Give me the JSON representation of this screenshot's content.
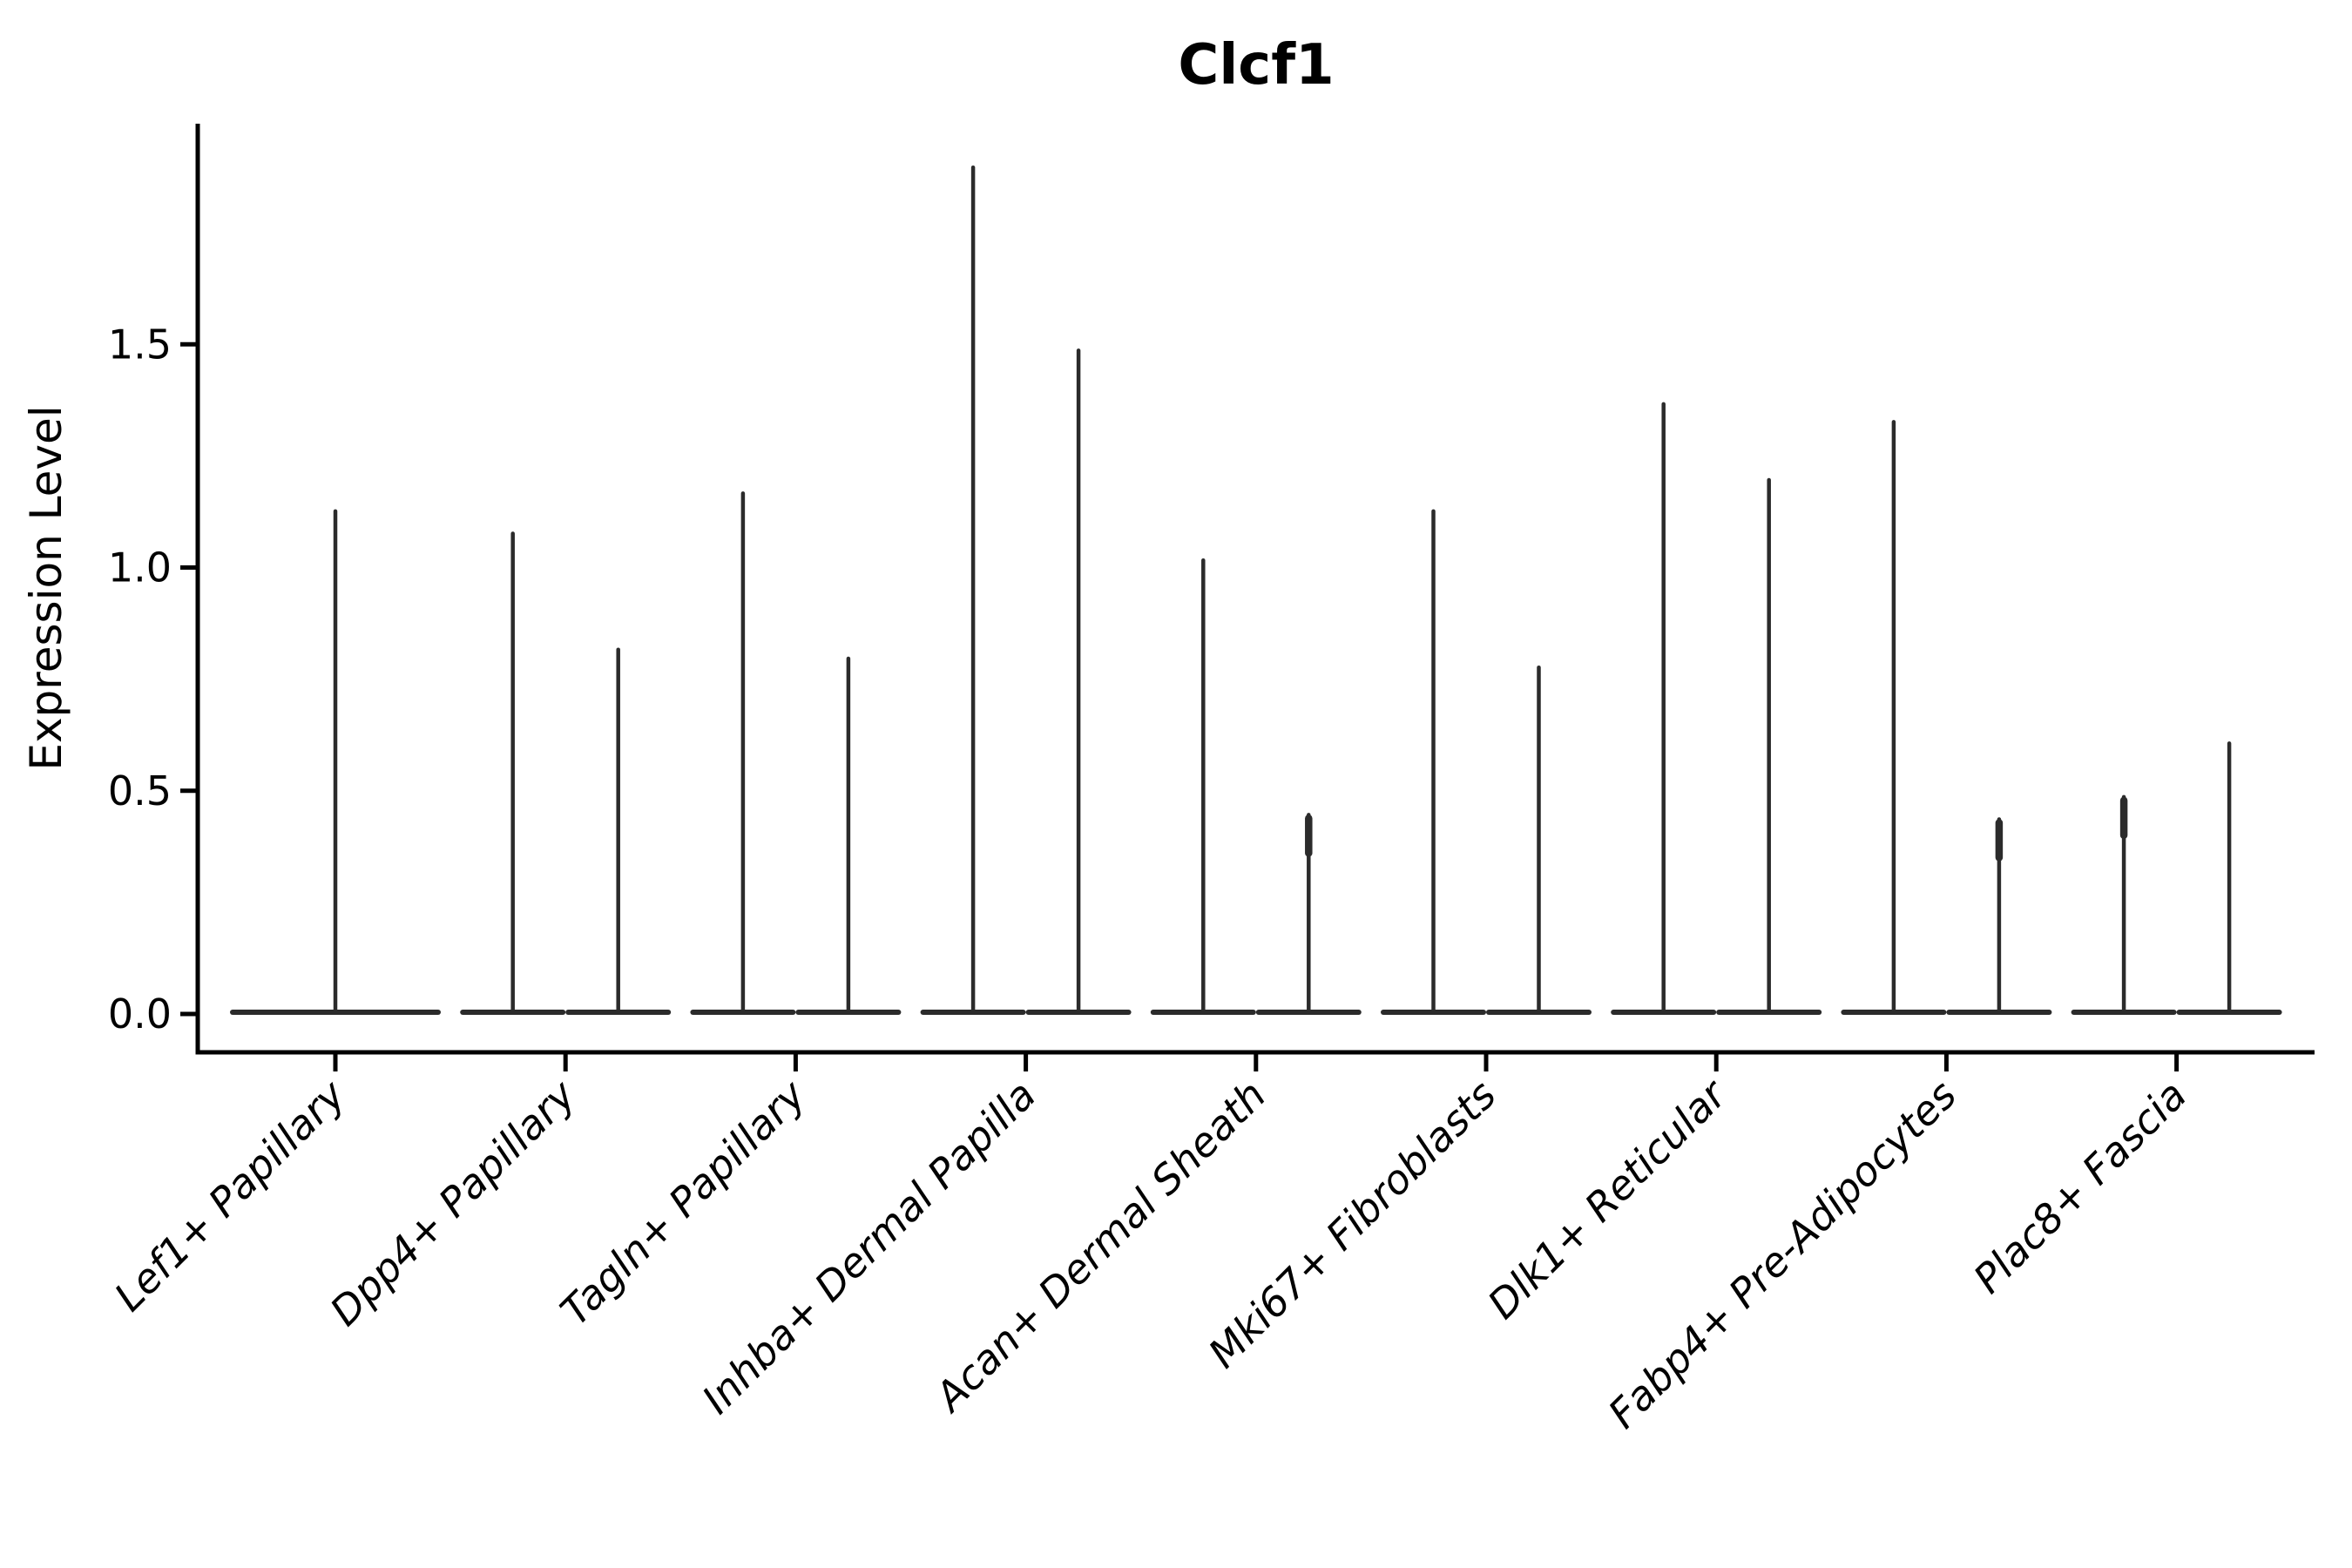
{
  "chart_data": {
    "type": "violin",
    "title": "Clcf1",
    "ylabel": "Expression Level",
    "xlabel": "",
    "yticks": [
      0.0,
      0.5,
      1.0,
      1.5
    ],
    "ytick_labels": [
      "0.0",
      "0.5",
      "1.0",
      "1.5"
    ],
    "ylim": [
      -0.09,
      1.99
    ],
    "grid": false,
    "legend_position": "none",
    "x_label_rotation_deg": 45,
    "x_label_style": "italic",
    "categories": [
      {
        "label": "Lef1+ Papillary",
        "violins": [
          {
            "position": "center",
            "max": 1.13,
            "knob": false
          }
        ]
      },
      {
        "label": "Dpp4+ Papillary",
        "violins": [
          {
            "position": "left",
            "max": 1.08,
            "knob": false
          },
          {
            "position": "right",
            "max": 0.82,
            "knob": false
          }
        ]
      },
      {
        "label": "Tagln+ Papillary",
        "violins": [
          {
            "position": "left",
            "max": 1.17,
            "knob": false
          },
          {
            "position": "right",
            "max": 0.8,
            "knob": false
          }
        ]
      },
      {
        "label": "Inhba+ Dermal Papilla",
        "violins": [
          {
            "position": "left",
            "max": 1.9,
            "knob": false
          },
          {
            "position": "right",
            "max": 1.49,
            "knob": false
          }
        ]
      },
      {
        "label": "Acan+ Dermal Sheath",
        "violins": [
          {
            "position": "left",
            "max": 1.02,
            "knob": false
          },
          {
            "position": "right",
            "max": 0.45,
            "knob": true
          }
        ]
      },
      {
        "label": "Mki67+ Fibroblasts",
        "violins": [
          {
            "position": "left",
            "max": 1.13,
            "knob": false
          },
          {
            "position": "right",
            "max": 0.78,
            "knob": false
          }
        ]
      },
      {
        "label": "Dlk1+ Reticular",
        "violins": [
          {
            "position": "left",
            "max": 1.37,
            "knob": false
          },
          {
            "position": "right",
            "max": 1.2,
            "knob": false
          }
        ]
      },
      {
        "label": "Fabp4+ Pre-Adipocytes",
        "violins": [
          {
            "position": "left",
            "max": 1.33,
            "knob": false
          },
          {
            "position": "right",
            "max": 0.44,
            "knob": true
          }
        ]
      },
      {
        "label": "Plac8+ Fascia",
        "violins": [
          {
            "position": "left",
            "max": 0.49,
            "knob": true
          },
          {
            "position": "right",
            "max": 0.61,
            "knob": false
          }
        ]
      }
    ]
  },
  "colors": {
    "violin": "#2b2b2b",
    "axis": "#000000",
    "text": "#000000",
    "background": "#ffffff"
  }
}
